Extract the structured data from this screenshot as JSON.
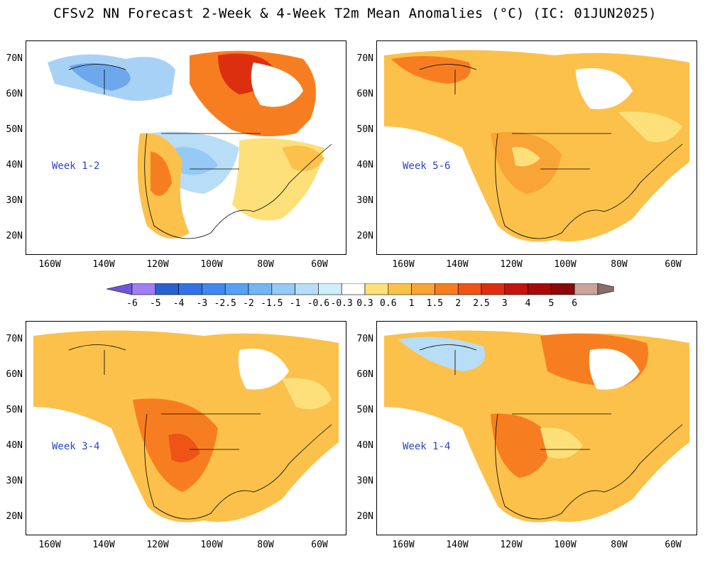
{
  "title": "CFSv2 NN Forecast 2-Week & 4-Week T2m Mean Anomalies (°C) (IC: 01JUN2025)",
  "panels": [
    {
      "label": "Week 1-2",
      "pattern": "cool-northwest-central"
    },
    {
      "label": "Week 5-6",
      "pattern": "warm-widespread"
    },
    {
      "label": "Week 3-4",
      "pattern": "warm-widespread"
    },
    {
      "label": "Week 1-4",
      "pattern": "warm-mixed"
    }
  ],
  "lat_labels": [
    "70N",
    "60N",
    "50N",
    "40N",
    "30N",
    "20N"
  ],
  "lon_labels": [
    "160W",
    "140W",
    "120W",
    "100W",
    "80W",
    "60W"
  ],
  "colorbar": {
    "labels": [
      "-6",
      "-5",
      "-4",
      "-3",
      "-2.5",
      "-2",
      "-1.5",
      "-1",
      "-0.6",
      "-0.3",
      "0.3",
      "0.6",
      "1",
      "1.5",
      "2",
      "2.5",
      "3",
      "4",
      "5",
      "6"
    ],
    "colors": [
      "#a07ff0",
      "#2a5fd2",
      "#3372e6",
      "#3f89f0",
      "#55a2f3",
      "#73b6f5",
      "#95c9f6",
      "#b8ddf6",
      "#cdeff9",
      "#ffffff",
      "#fde07a",
      "#fbc14b",
      "#f9a436",
      "#f77e20",
      "#ee5416",
      "#dc2f10",
      "#c2150e",
      "#a70a0a",
      "#8c0808",
      "#c8a49a"
    ],
    "min_arrow_color": "#6f55d8",
    "max_arrow_color": "#8a6e66"
  }
}
